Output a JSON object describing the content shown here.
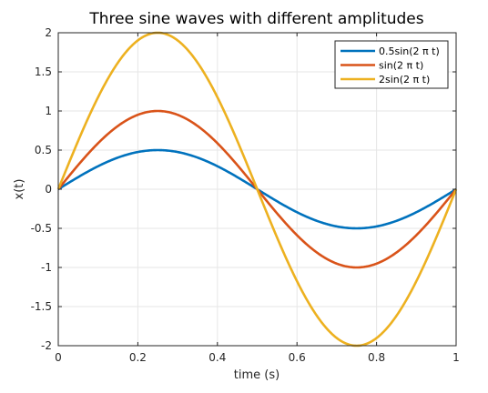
{
  "chart_data": {
    "type": "line",
    "title": "Three sine waves with different amplitudes",
    "xlabel": "time (s)",
    "ylabel": "x(t)",
    "xlim": [
      0,
      1
    ],
    "ylim": [
      -2,
      2
    ],
    "xticks": [
      0,
      0.2,
      0.4,
      0.6,
      0.8,
      1
    ],
    "xtick_labels": [
      "0",
      "0.2",
      "0.4",
      "0.6",
      "0.8",
      "1"
    ],
    "yticks": [
      2,
      1.5,
      1,
      0.5,
      0,
      -0.5,
      -1,
      -1.5,
      -2
    ],
    "ytick_labels": [
      "2",
      "1.5",
      "1",
      "0.5",
      "0",
      "-0.5",
      "-1",
      "-1.5",
      "-2"
    ],
    "grid": true,
    "legend_position": "top-right",
    "series": [
      {
        "name": "0.5sin(2 π t)",
        "amplitude": 0.5,
        "frequency": 1,
        "color": "#0072BD",
        "x": [
          0,
          0.05,
          0.1,
          0.15,
          0.2,
          0.25,
          0.3,
          0.35,
          0.4,
          0.45,
          0.5,
          0.55,
          0.6,
          0.65,
          0.7,
          0.75,
          0.8,
          0.85,
          0.9,
          0.95,
          1
        ],
        "y": [
          0,
          0.155,
          0.294,
          0.405,
          0.476,
          0.5,
          0.476,
          0.405,
          0.294,
          0.155,
          0,
          -0.155,
          -0.294,
          -0.405,
          -0.476,
          -0.5,
          -0.476,
          -0.405,
          -0.294,
          -0.155,
          0
        ]
      },
      {
        "name": "sin(2 π t)",
        "amplitude": 1,
        "frequency": 1,
        "color": "#D95319",
        "x": [
          0,
          0.05,
          0.1,
          0.15,
          0.2,
          0.25,
          0.3,
          0.35,
          0.4,
          0.45,
          0.5,
          0.55,
          0.6,
          0.65,
          0.7,
          0.75,
          0.8,
          0.85,
          0.9,
          0.95,
          1
        ],
        "y": [
          0,
          0.309,
          0.588,
          0.809,
          0.951,
          1,
          0.951,
          0.809,
          0.588,
          0.309,
          0,
          -0.309,
          -0.588,
          -0.809,
          -0.951,
          -1,
          -0.951,
          -0.809,
          -0.588,
          -0.309,
          0
        ]
      },
      {
        "name": "2sin(2 π t)",
        "amplitude": 2,
        "frequency": 1,
        "color": "#EDB120",
        "x": [
          0,
          0.05,
          0.1,
          0.15,
          0.2,
          0.25,
          0.3,
          0.35,
          0.4,
          0.45,
          0.5,
          0.55,
          0.6,
          0.65,
          0.7,
          0.75,
          0.8,
          0.85,
          0.9,
          0.95,
          1
        ],
        "y": [
          0,
          0.618,
          1.176,
          1.618,
          1.902,
          2,
          1.902,
          1.618,
          1.176,
          0.618,
          0,
          -0.618,
          -1.176,
          -1.618,
          -1.902,
          -2,
          -1.902,
          -1.618,
          -1.176,
          -0.618,
          0
        ]
      }
    ]
  },
  "colors": {
    "grid": "#e6e6e6",
    "axis": "#262626"
  }
}
